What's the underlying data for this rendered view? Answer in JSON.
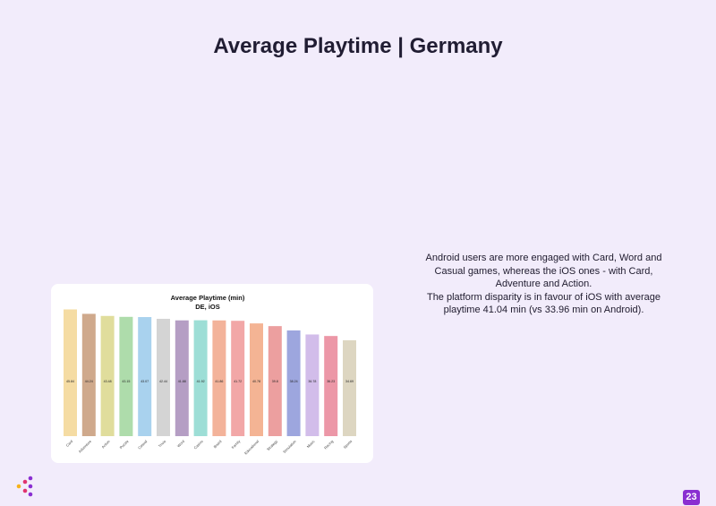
{
  "page": {
    "title": "Average Playtime | Germany",
    "page_number": "23",
    "description": [
      "Android users are more engaged with Card, Word and Casual games, whereas the iOS ones - with Card, Adventure and Action.",
      "The platform disparity is in favour of iOS with average playtime 41.04 min (vs 33.96 min on Android)."
    ]
  },
  "chart_data": {
    "type": "bar",
    "title": "Average Playtime (min)",
    "subtitle": "DE, iOS",
    "categories": [
      "Card",
      "Adventure",
      "Action",
      "Puzzle",
      "Casual",
      "Trivia",
      "Word",
      "Casino",
      "Board",
      "Family",
      "Educational",
      "Strategy",
      "Simulation",
      "Music",
      "Racing",
      "Sports"
    ],
    "values": [
      45.84,
      44.24,
      43.48,
      43.15,
      43.07,
      42.44,
      41.88,
      41.92,
      41.86,
      41.72,
      40.78,
      39.8,
      38.24,
      36.78,
      36.23,
      34.69
    ],
    "value_labels": [
      "45.84",
      "44.24",
      "43.48",
      "43.15",
      "43.07",
      "42.44",
      "41.88",
      "41.92",
      "41.86",
      "41.72",
      "40.78",
      "39.8",
      "38.24",
      "36.78",
      "36.23",
      "34.69"
    ],
    "colors": [
      "#f5dca3",
      "#cfa98c",
      "#e0dd9c",
      "#aedcab",
      "#a9d2ee",
      "#d4d4d4",
      "#b59ec4",
      "#9dded6",
      "#f3b39a",
      "#f2a7a7",
      "#f4b494",
      "#ec9f9f",
      "#9da6de",
      "#d2bdea",
      "#ec97a7",
      "#ddd6c1"
    ],
    "ylim": [
      0,
      46
    ],
    "grid": false,
    "legend": "none"
  }
}
